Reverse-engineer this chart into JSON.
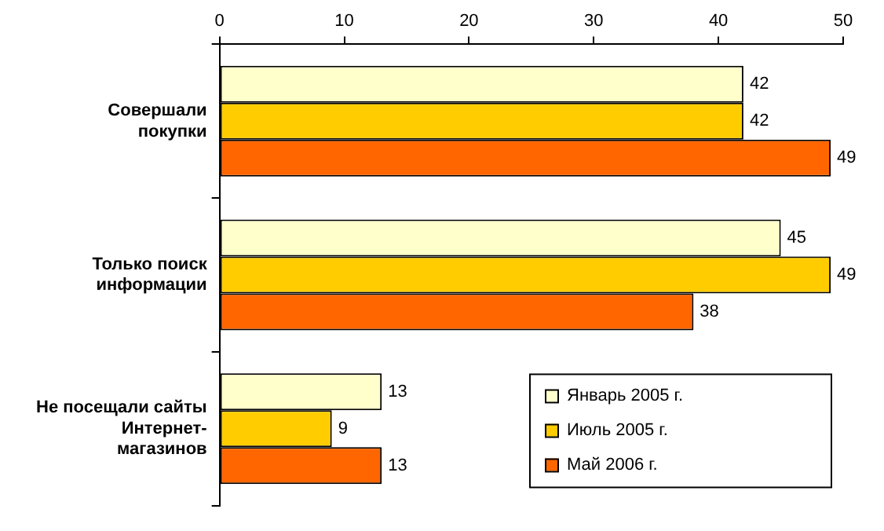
{
  "chart_data": {
    "type": "bar",
    "orientation": "horizontal",
    "categories": [
      "Совершали\nпокупки",
      "Только поиск\nинформации",
      "Не посещали сайты\nИнтернет-\nмагазинов"
    ],
    "series": [
      {
        "name": "Январь 2005 г.",
        "color": "#ffffcc",
        "values": [
          42,
          45,
          13
        ]
      },
      {
        "name": "Июль 2005 г.",
        "color": "#ffcc00",
        "values": [
          42,
          49,
          9
        ]
      },
      {
        "name": "Май 2006 г.",
        "color": "#ff6600",
        "values": [
          49,
          38,
          13
        ]
      }
    ],
    "xlim": [
      0,
      50
    ],
    "xticks": [
      0,
      10,
      20,
      30,
      40,
      50
    ],
    "grid": false,
    "legend": "bottom right",
    "data_labels": true
  }
}
